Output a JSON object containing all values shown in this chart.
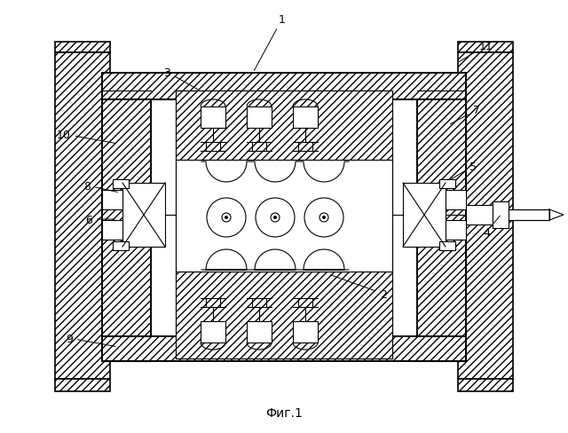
{
  "bg_color": "#ffffff",
  "line_color": "#000000",
  "fig_caption": "Фиг.1",
  "lw": 0.8,
  "lw2": 1.2,
  "hatch": "////",
  "labels": {
    "1": [
      318,
      22,
      285,
      83
    ],
    "2": [
      432,
      332,
      370,
      310
    ],
    "3": [
      188,
      82,
      225,
      103
    ],
    "4": [
      548,
      263,
      565,
      242
    ],
    "5": [
      533,
      188,
      505,
      205
    ],
    "6": [
      100,
      248,
      132,
      248
    ],
    "7": [
      537,
      125,
      505,
      142
    ],
    "8": [
      98,
      210,
      135,
      218
    ],
    "9": [
      78,
      382,
      133,
      392
    ],
    "10": [
      72,
      152,
      133,
      163
    ],
    "11": [
      548,
      52,
      515,
      72
    ]
  }
}
